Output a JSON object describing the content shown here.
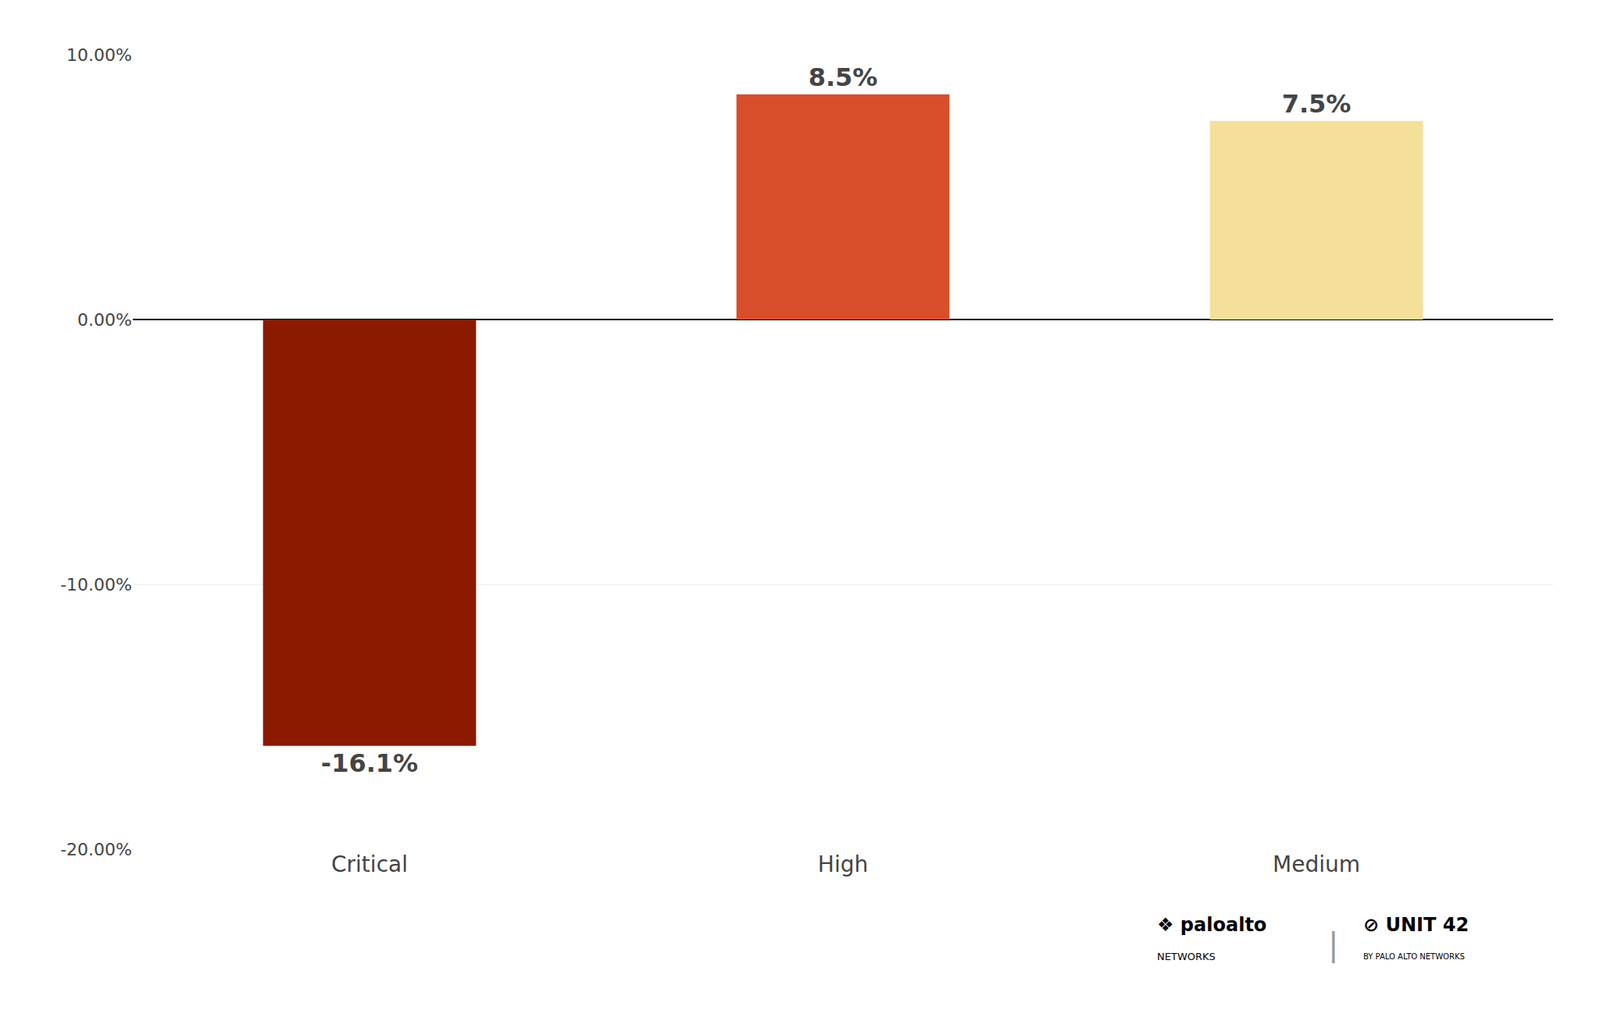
{
  "chart_data": {
    "type": "bar",
    "categories": [
      "Critical",
      "High",
      "Medium"
    ],
    "values": [
      -16.1,
      8.5,
      7.5
    ],
    "value_labels": [
      "-16.1%",
      "8.5%",
      "7.5%"
    ],
    "data_labels": true,
    "colors": [
      "#8B1A00",
      "#D94E2A",
      "#F5E09A"
    ],
    "ylim": [
      -20,
      10
    ],
    "yticks": [
      {
        "value": -20,
        "label": "-20.00%"
      },
      {
        "value": -10,
        "label": "-10.00%"
      },
      {
        "value": 0,
        "label": "0.00%"
      },
      {
        "value": 10,
        "label": "10.00%"
      }
    ],
    "grid": true,
    "annotations": [
      "❖ paloalto",
      "NETWORKS",
      "|",
      "⊘ UNIT 42",
      "BY PALO ALTO NETWORKS"
    ]
  }
}
